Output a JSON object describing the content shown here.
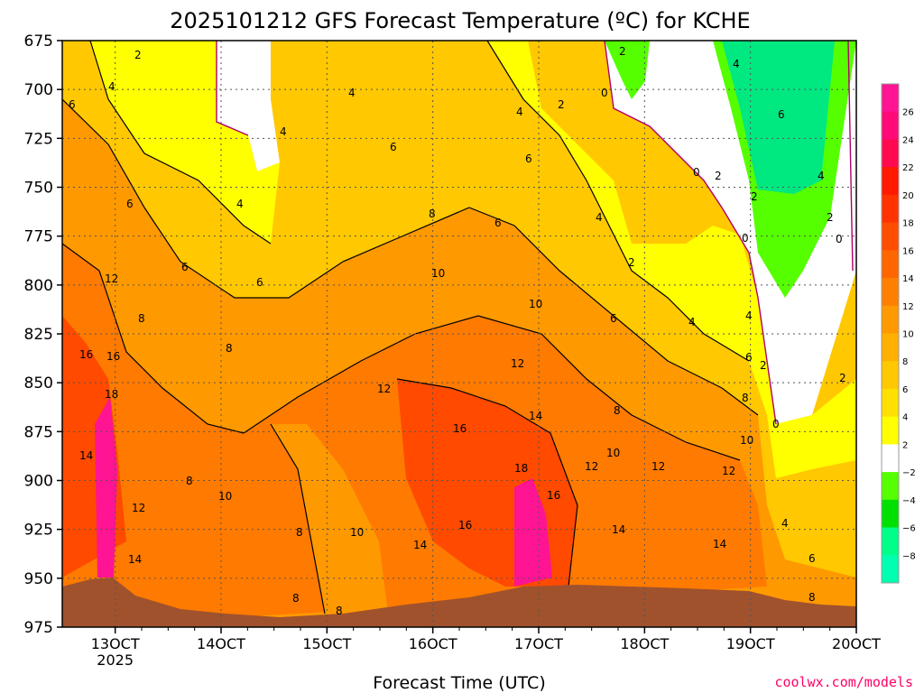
{
  "chart_data": {
    "type": "heatmap",
    "title": "2025101212 GFS Forecast Temperature (ºC) for KCHE",
    "xlabel": "Forecast Time (UTC)",
    "ylabel": "",
    "x_ticks": [
      {
        "label": "13OCT",
        "day": 13
      },
      {
        "label": "14OCT",
        "day": 14
      },
      {
        "label": "15OCT",
        "day": 15
      },
      {
        "label": "16OCT",
        "day": 16
      },
      {
        "label": "17OCT",
        "day": 17
      },
      {
        "label": "18OCT",
        "day": 18
      },
      {
        "label": "19OCT",
        "day": 19
      },
      {
        "label": "20OCT",
        "day": 20
      }
    ],
    "year_label": "2025",
    "xlim": [
      12.5,
      20
    ],
    "y_ticks": [
      675,
      700,
      725,
      750,
      775,
      800,
      825,
      850,
      875,
      900,
      925,
      950,
      975
    ],
    "ylim": [
      975,
      675
    ],
    "colorbar": {
      "labels": [
        "26",
        "24",
        "22",
        "20",
        "18",
        "16",
        "14",
        "12",
        "10",
        "8",
        "6",
        "4",
        "2",
        "−2",
        "−4",
        "−6",
        "−8"
      ],
      "colors": [
        "#ff1493",
        "#ff0a78",
        "#ff0a50",
        "#ff1a00",
        "#ff3300",
        "#ff4d00",
        "#ff6600",
        "#ff7f00",
        "#ff9900",
        "#ffb000",
        "#ffc800",
        "#ffe000",
        "#ffff00",
        "#ffffff",
        "#55ff00",
        "#00e000",
        "#00ff88",
        "#00ffb0"
      ]
    },
    "watermark": "coolwx.com/models",
    "contour_labels": [
      "0",
      "2",
      "4",
      "6",
      "8",
      "10",
      "12",
      "14",
      "16",
      "18"
    ],
    "grid": true,
    "terrain_color": "#a0522d"
  }
}
